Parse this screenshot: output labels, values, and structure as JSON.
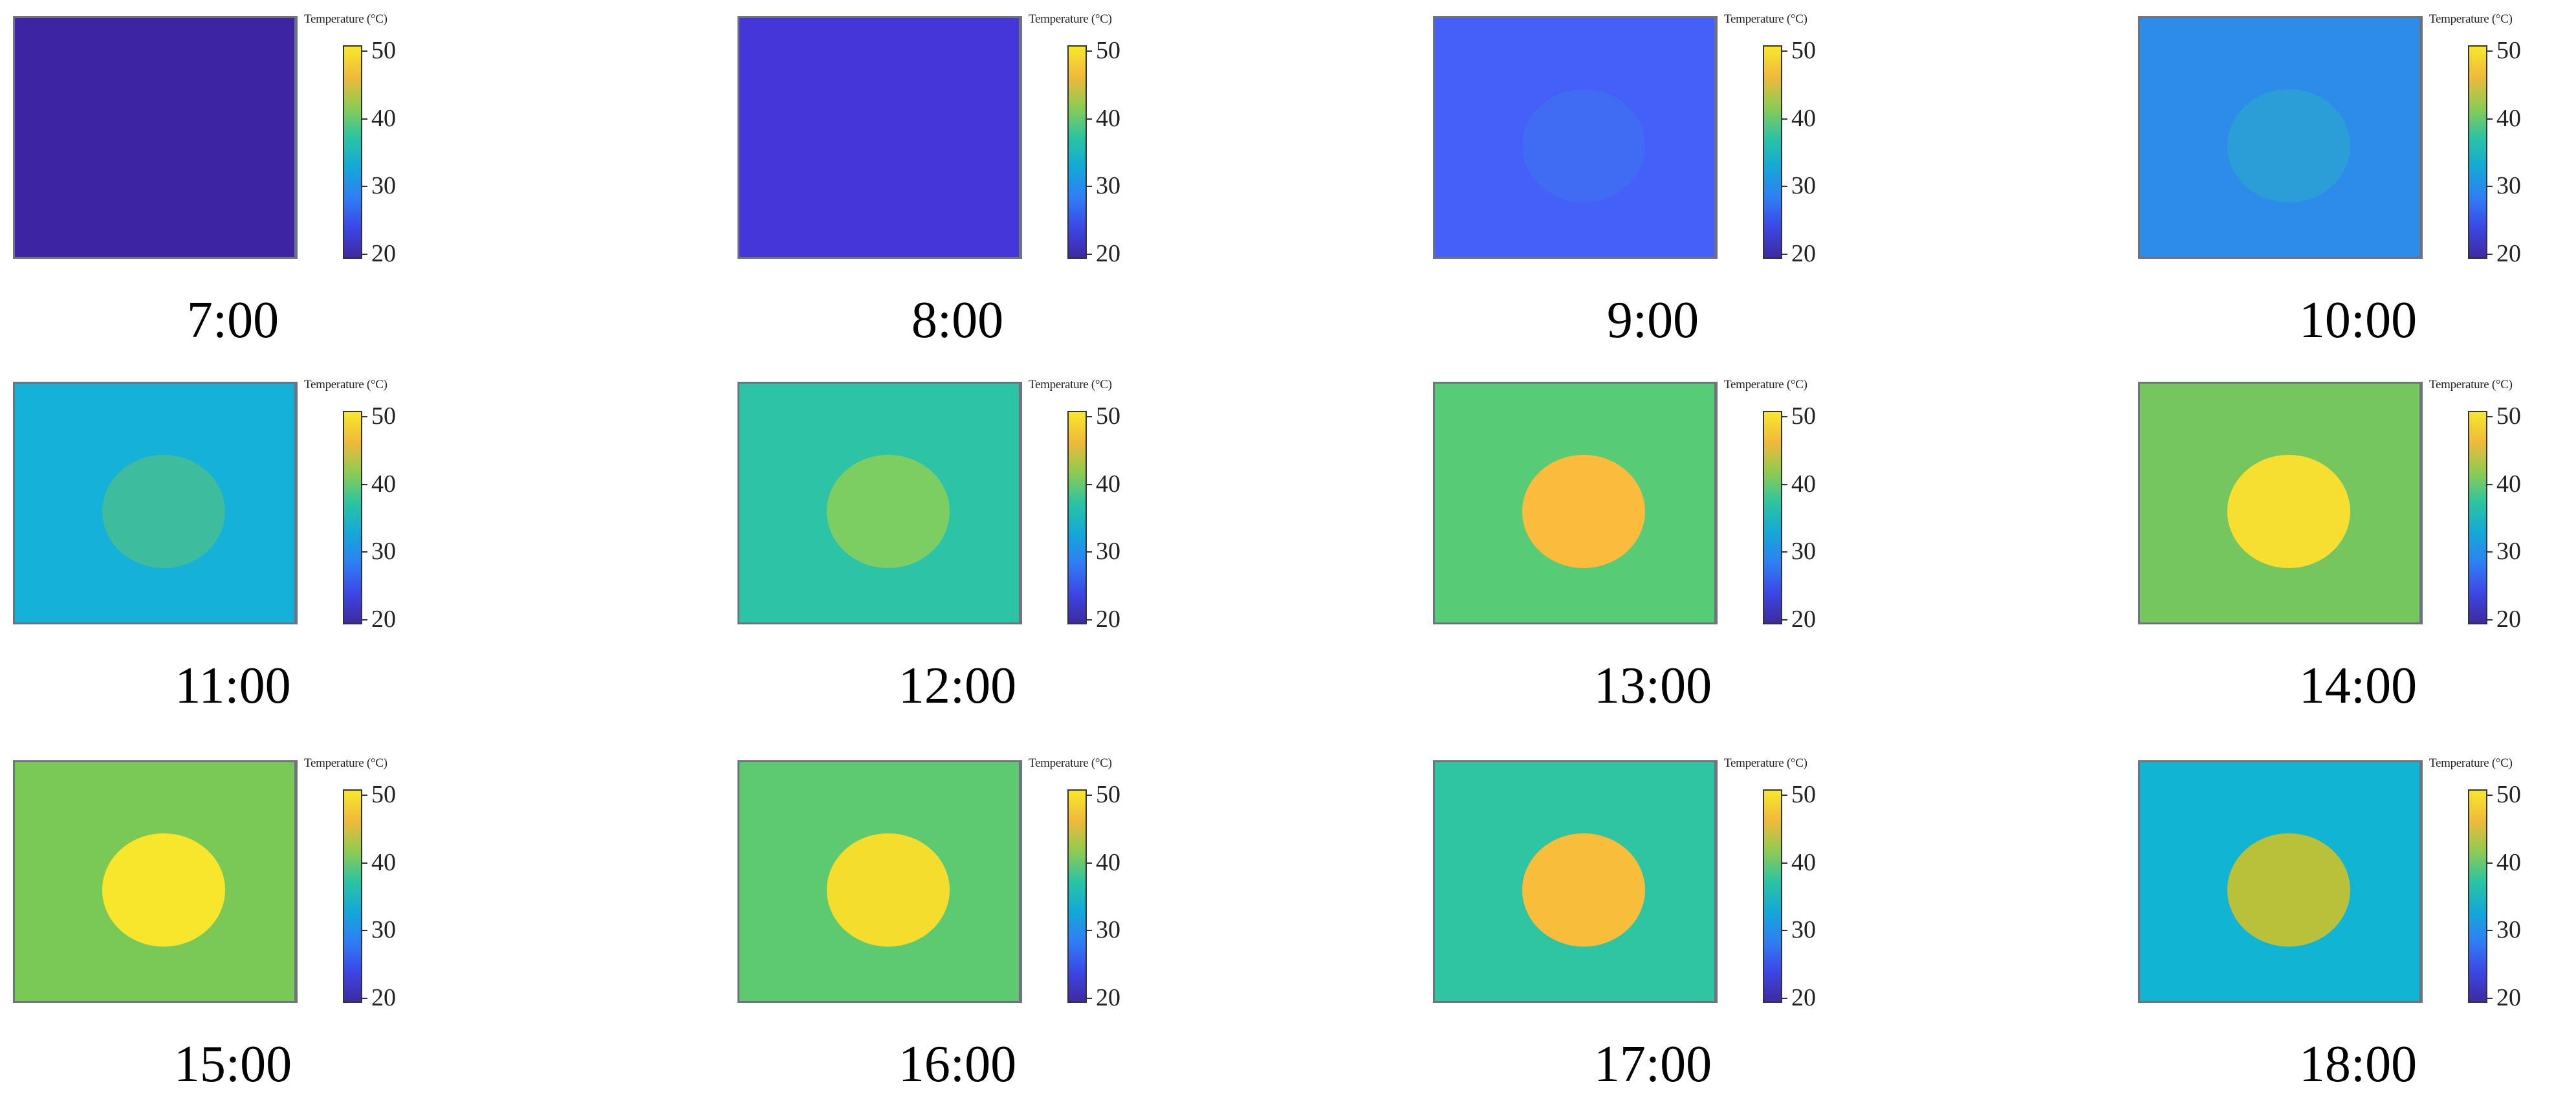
{
  "chart_data": {
    "type": "heatmap",
    "colorbar": {
      "title": "Temperature (°C)",
      "range": [
        20,
        50
      ],
      "ticks": [
        "50",
        "40",
        "30",
        "20"
      ],
      "colormap": [
        "#3e2a9f",
        "#3c47e6",
        "#2f7ff4",
        "#13a9d6",
        "#2cc4a0",
        "#8fcb52",
        "#f0b93a",
        "#f7e82c"
      ]
    },
    "panels": [
      {
        "time": "7:00",
        "plate": "#3c24a2",
        "spot": "#3c24a2"
      },
      {
        "time": "8:00",
        "plate": "#4436d8",
        "spot": "#4436d8"
      },
      {
        "time": "9:00",
        "plate": "#4460f8",
        "spot": "#3f6cf2"
      },
      {
        "time": "10:00",
        "plate": "#2d8ce9",
        "spot": "#2b9ed8"
      },
      {
        "time": "11:00",
        "plate": "#15b1d8",
        "spot": "#3ebc9e"
      },
      {
        "time": "12:00",
        "plate": "#2cc3a6",
        "spot": "#7cce62"
      },
      {
        "time": "13:00",
        "plate": "#57cb76",
        "spot": "#fbbb3c"
      },
      {
        "time": "14:00",
        "plate": "#75c65e",
        "spot": "#f7df32"
      },
      {
        "time": "15:00",
        "plate": "#7ac957",
        "spot": "#f8e62c"
      },
      {
        "time": "16:00",
        "plate": "#5dca72",
        "spot": "#f5dd2e"
      },
      {
        "time": "17:00",
        "plate": "#2fc4a2",
        "spot": "#f8bd3a"
      },
      {
        "time": "18:00",
        "plate": "#12b4d4",
        "spot": "#b9c03a"
      }
    ]
  }
}
